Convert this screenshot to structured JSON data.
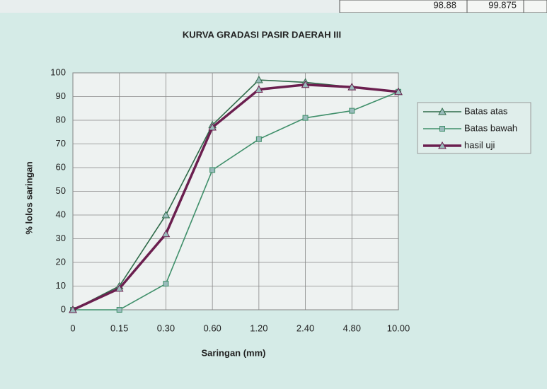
{
  "top_cells": [
    "98.88",
    "99.875"
  ],
  "chart_data": {
    "type": "line",
    "title": "KURVA GRADASI PASIR DAERAH III",
    "x_label": "Saringan (mm)",
    "y_label": "% lolos saringan",
    "categories": [
      "0",
      "0.15",
      "0.30",
      "0.60",
      "1.20",
      "2.40",
      "4.80",
      "10.00"
    ],
    "series": [
      {
        "name": "Batas atas",
        "color": "#2f6b4a",
        "marker": "triangle",
        "values": [
          0,
          10,
          40,
          78,
          97,
          96,
          94,
          92
        ]
      },
      {
        "name": "Batas bawah",
        "color": "#3f8f6a",
        "marker": "square",
        "values": [
          0,
          0,
          11,
          59,
          72,
          81,
          84,
          92
        ]
      },
      {
        "name": "hasil uji",
        "color": "#6b1f4f",
        "marker": "triangle",
        "values": [
          0,
          9,
          32,
          77,
          93,
          95,
          94,
          92
        ]
      }
    ],
    "ylim": [
      0,
      100
    ],
    "yticks": [
      0,
      10,
      20,
      30,
      40,
      50,
      60,
      70,
      80,
      90,
      100
    ],
    "grid": true,
    "legend": "right"
  }
}
